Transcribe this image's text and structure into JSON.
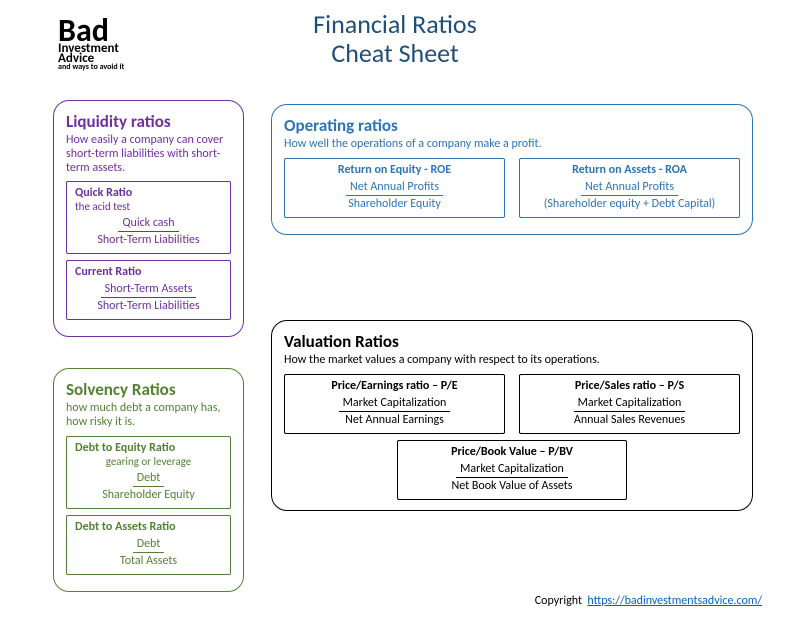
{
  "logo": {
    "line1": "Bad",
    "line2": "Investment",
    "line3": "Advice",
    "line4": "and ways to avoid it"
  },
  "title": {
    "line1": "Financial Ratios",
    "line2": "Cheat Sheet"
  },
  "liquidity": {
    "heading": "Liquidity ratios",
    "desc": "How easily a company can cover short-term liabilities with short-term assets.",
    "color": "#7030a0",
    "ratios": [
      {
        "name": "Quick Ratio",
        "sub": "the acid test",
        "num": "Quick cash",
        "den": "Short-Term Liabilities"
      },
      {
        "name": "Current Ratio",
        "num": "Short-Term Assets",
        "den": "Short-Term Liabilities"
      }
    ]
  },
  "solvency": {
    "heading": "Solvency Ratios",
    "desc": "how much debt a company has, how risky it is.",
    "color": "#548235",
    "ratios": [
      {
        "name": "Debt to Equity Ratio",
        "sub": "gearing or leverage",
        "num": "Debt",
        "den": "Shareholder Equity"
      },
      {
        "name": "Debt to Assets Ratio",
        "num": "Debt",
        "den": "Total Assets"
      }
    ]
  },
  "operating": {
    "heading": "Operating ratios",
    "desc": "How well the operations of a company make a profit.",
    "color": "#2e75b6",
    "ratios": [
      {
        "name": "Return on Equity - ROE",
        "num": "Net Annual Profits",
        "den": "Shareholder Equity"
      },
      {
        "name": "Return on Assets - ROA",
        "num": "Net Annual Profits",
        "den": "(Shareholder equity + Debt Capital)"
      }
    ]
  },
  "valuation": {
    "heading": "Valuation Ratios",
    "desc": "How the market values a company with respect to its operations.",
    "color": "#000000",
    "row_ratios": [
      {
        "name": "Price/Earnings ratio – P/E",
        "num": "Market Capitalization",
        "den": "Net Annual Earnings"
      },
      {
        "name": "Price/Sales ratio – P/S",
        "num": "Market Capitalization",
        "den": "Annual Sales Revenues"
      }
    ],
    "center_ratio": {
      "name": "Price/Book Value – P/BV",
      "num": "Market Capitalization",
      "den": "Net Book Value of Assets"
    }
  },
  "footer": {
    "copyright": "Copyright",
    "link_text": "https://badinvestmentsadvice.com/",
    "link_href": "https://badinvestmentsadvice.com/"
  }
}
